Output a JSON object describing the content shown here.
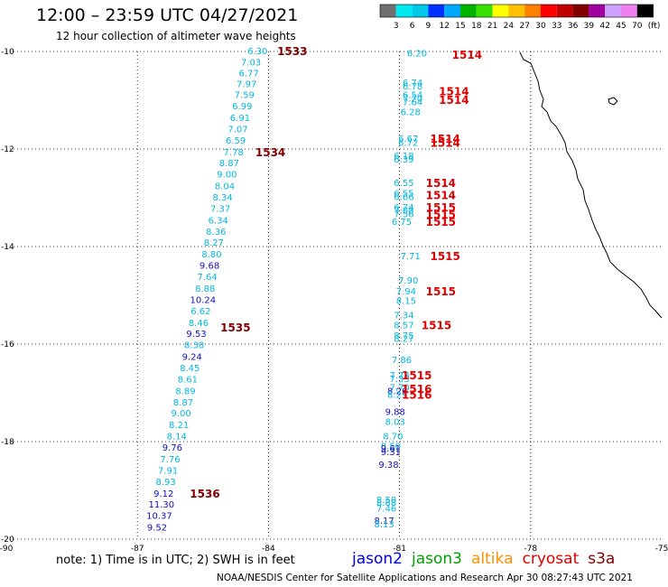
{
  "header": {
    "title": "12:00  –  23:59 UTC 04/27/2021",
    "subtitle": "12 hour collection of altimeter wave heights"
  },
  "color_scale": {
    "labels": [
      "3",
      "6",
      "9",
      "12",
      "15",
      "18",
      "21",
      "24",
      "27",
      "30",
      "33",
      "36",
      "39",
      "42",
      "45",
      "70"
    ],
    "unit_label": "(ft)",
    "colors": [
      "#707070",
      "#00e8f0",
      "#00c8e8",
      "#0030ff",
      "#00a8ff",
      "#00b400",
      "#38e000",
      "#ffff00",
      "#ffc000",
      "#ff8000",
      "#ff0000",
      "#c00000",
      "#800000",
      "#a000a0",
      "#d0a0ff",
      "#f080f0",
      "#000000"
    ]
  },
  "map_data": {
    "lon_range": [
      -90,
      -75
    ],
    "lat_range": [
      -20,
      -10
    ],
    "lon_ticks": [
      "-90",
      "-87",
      "-84",
      "-81",
      "-78",
      "-75"
    ],
    "lat_ticks": [
      "-10",
      "-12",
      "-14",
      "-16",
      "-18",
      "-20"
    ],
    "tracks": [
      {
        "name": "track-west",
        "points": [
          {
            "lon": -84.25,
            "lat": -10.0,
            "v": "6.30",
            "c": "#00b8e0"
          },
          {
            "lon": -84.4,
            "lat": -10.23,
            "v": "7.03",
            "c": "#00b8e0"
          },
          {
            "lon": -84.45,
            "lat": -10.45,
            "v": "6.77",
            "c": "#00b8e0"
          },
          {
            "lon": -84.5,
            "lat": -10.68,
            "v": "7.97",
            "c": "#00b8e0"
          },
          {
            "lon": -84.55,
            "lat": -10.9,
            "v": "7.59",
            "c": "#00b8e0"
          },
          {
            "lon": -84.6,
            "lat": -11.13,
            "v": "6.99",
            "c": "#00b8e0"
          },
          {
            "lon": -84.65,
            "lat": -11.37,
            "v": "6.91",
            "c": "#00b8e0"
          },
          {
            "lon": -84.7,
            "lat": -11.6,
            "v": "7.07",
            "c": "#00b8e0"
          },
          {
            "lon": -84.75,
            "lat": -11.83,
            "v": "6.59",
            "c": "#00b8e0"
          },
          {
            "lon": -84.8,
            "lat": -12.07,
            "v": "7.78",
            "c": "#00b8e0"
          },
          {
            "lon": -84.9,
            "lat": -12.3,
            "v": "8.87",
            "c": "#00b8e0"
          },
          {
            "lon": -84.95,
            "lat": -12.53,
            "v": "9.00",
            "c": "#00b8e0"
          },
          {
            "lon": -85.0,
            "lat": -12.77,
            "v": "8.04",
            "c": "#00b8e0"
          },
          {
            "lon": -85.05,
            "lat": -13.0,
            "v": "8.34",
            "c": "#00b8e0"
          },
          {
            "lon": -85.1,
            "lat": -13.23,
            "v": "7.37",
            "c": "#00b8e0"
          },
          {
            "lon": -85.15,
            "lat": -13.47,
            "v": "6.34",
            "c": "#00b8e0"
          },
          {
            "lon": -85.2,
            "lat": -13.7,
            "v": "8.36",
            "c": "#00b8e0"
          },
          {
            "lon": -85.25,
            "lat": -13.93,
            "v": "8.27",
            "c": "#00b8e0"
          },
          {
            "lon": -85.3,
            "lat": -14.17,
            "v": "8.80",
            "c": "#00b8e0"
          },
          {
            "lon": -85.35,
            "lat": -14.4,
            "v": "9.68",
            "c": "#1010c0"
          },
          {
            "lon": -85.4,
            "lat": -14.63,
            "v": "7.64",
            "c": "#00b8e0"
          },
          {
            "lon": -85.45,
            "lat": -14.87,
            "v": "8.88",
            "c": "#00b8e0"
          },
          {
            "lon": -85.5,
            "lat": -15.1,
            "v": "10.24",
            "c": "#1010c0"
          },
          {
            "lon": -85.55,
            "lat": -15.33,
            "v": "6.62",
            "c": "#00b8e0"
          },
          {
            "lon": -85.6,
            "lat": -15.57,
            "v": "8.46",
            "c": "#00b8e0"
          },
          {
            "lon": -85.65,
            "lat": -15.8,
            "v": "9.53",
            "c": "#1010c0"
          },
          {
            "lon": -85.7,
            "lat": -16.03,
            "v": "8.38",
            "c": "#00b8e0"
          },
          {
            "lon": -85.75,
            "lat": -16.27,
            "v": "9.24",
            "c": "#1010c0"
          },
          {
            "lon": -85.8,
            "lat": -16.5,
            "v": "8.45",
            "c": "#00b8e0"
          },
          {
            "lon": -85.85,
            "lat": -16.73,
            "v": "8.61",
            "c": "#00b8e0"
          },
          {
            "lon": -85.9,
            "lat": -16.97,
            "v": "8.89",
            "c": "#00b8e0"
          },
          {
            "lon": -85.95,
            "lat": -17.2,
            "v": "8.87",
            "c": "#00b8e0"
          },
          {
            "lon": -86.0,
            "lat": -17.43,
            "v": "9.00",
            "c": "#00b8e0"
          },
          {
            "lon": -86.05,
            "lat": -17.67,
            "v": "8.21",
            "c": "#00b8e0"
          },
          {
            "lon": -86.1,
            "lat": -17.9,
            "v": "8.14",
            "c": "#00b8e0"
          },
          {
            "lon": -86.2,
            "lat": -18.13,
            "v": "9.76",
            "c": "#1010c0"
          },
          {
            "lon": -86.25,
            "lat": -18.37,
            "v": "7.76",
            "c": "#00b8e0"
          },
          {
            "lon": -86.3,
            "lat": -18.6,
            "v": "7.91",
            "c": "#00b8e0"
          },
          {
            "lon": -86.35,
            "lat": -18.83,
            "v": "8.93",
            "c": "#00b8e0"
          },
          {
            "lon": -86.4,
            "lat": -19.07,
            "v": "9.12",
            "c": "#1010c0"
          },
          {
            "lon": -86.45,
            "lat": -19.3,
            "v": "11.30",
            "c": "#1010c0"
          },
          {
            "lon": -86.5,
            "lat": -19.53,
            "v": "10.37",
            "c": "#1010c0"
          },
          {
            "lon": -86.55,
            "lat": -19.77,
            "v": "9.52",
            "c": "#1010c0"
          }
        ]
      },
      {
        "name": "track-upper-east",
        "points": [
          {
            "lon": -80.6,
            "lat": -10.05,
            "v": "6.20",
            "c": "#00b8e0"
          },
          {
            "lon": -80.7,
            "lat": -10.65,
            "v": "6.74",
            "c": "#00b8e0"
          },
          {
            "lon": -80.7,
            "lat": -10.72,
            "v": "6.78",
            "c": "#00b8e0"
          },
          {
            "lon": -80.7,
            "lat": -10.9,
            "v": "6.54",
            "c": "#00b8e0"
          },
          {
            "lon": -80.7,
            "lat": -10.97,
            "v": "7.20",
            "c": "#00b8e0"
          },
          {
            "lon": -80.7,
            "lat": -11.05,
            "v": "7.64",
            "c": "#00b8e0"
          },
          {
            "lon": -80.75,
            "lat": -11.25,
            "v": "6.28",
            "c": "#00b8e0"
          },
          {
            "lon": -80.8,
            "lat": -11.8,
            "v": "6.67",
            "c": "#00b8e0"
          },
          {
            "lon": -80.8,
            "lat": -11.88,
            "v": "6.72",
            "c": "#00b8e0"
          },
          {
            "lon": -80.9,
            "lat": -12.15,
            "v": "6.18",
            "c": "#00b8e0"
          },
          {
            "lon": -80.9,
            "lat": -12.22,
            "v": "6.39",
            "c": "#00b8e0"
          },
          {
            "lon": -80.9,
            "lat": -12.7,
            "v": "6.55",
            "c": "#00b8e0"
          },
          {
            "lon": -80.9,
            "lat": -12.92,
            "v": "6.55",
            "c": "#00b8e0"
          },
          {
            "lon": -80.9,
            "lat": -12.99,
            "v": "6.66",
            "c": "#00b8e0"
          },
          {
            "lon": -80.9,
            "lat": -13.2,
            "v": "6.74",
            "c": "#00b8e0"
          },
          {
            "lon": -80.9,
            "lat": -13.27,
            "v": "7.08",
            "c": "#00b8e0"
          },
          {
            "lon": -80.9,
            "lat": -13.34,
            "v": "7.56",
            "c": "#00b8e0"
          },
          {
            "lon": -80.95,
            "lat": -13.5,
            "v": "6.75",
            "c": "#00b8e0"
          }
        ]
      },
      {
        "name": "track-lower-east",
        "points": [
          {
            "lon": -80.75,
            "lat": -14.2,
            "v": "7.71",
            "c": "#00b8e0"
          },
          {
            "lon": -80.8,
            "lat": -14.7,
            "v": "7.90",
            "c": "#00b8e0"
          },
          {
            "lon": -80.85,
            "lat": -14.93,
            "v": "7.94",
            "c": "#00b8e0"
          },
          {
            "lon": -80.85,
            "lat": -15.12,
            "v": "8.15",
            "c": "#00b8e0"
          },
          {
            "lon": -80.9,
            "lat": -15.42,
            "v": "7.34",
            "c": "#00b8e0"
          },
          {
            "lon": -80.9,
            "lat": -15.62,
            "v": "8.57",
            "c": "#00b8e0"
          },
          {
            "lon": -80.9,
            "lat": -15.83,
            "v": "8.75",
            "c": "#00b8e0"
          },
          {
            "lon": -80.9,
            "lat": -15.9,
            "v": "8.27",
            "c": "#00b8e0"
          },
          {
            "lon": -80.95,
            "lat": -16.33,
            "v": "7.86",
            "c": "#00b8e0"
          },
          {
            "lon": -81.0,
            "lat": -16.65,
            "v": "7.78",
            "c": "#00b8e0"
          },
          {
            "lon": -81.0,
            "lat": -16.72,
            "v": "7.33",
            "c": "#00b8e0"
          },
          {
            "lon": -81.0,
            "lat": -16.9,
            "v": "7.70",
            "c": "#00b8e0"
          },
          {
            "lon": -81.05,
            "lat": -16.97,
            "v": "8.26",
            "c": "#1010c0"
          },
          {
            "lon": -81.05,
            "lat": -17.05,
            "v": "8.29",
            "c": "#00b8e0"
          },
          {
            "lon": -81.1,
            "lat": -17.4,
            "v": "9.88",
            "c": "#1010c0"
          },
          {
            "lon": -81.1,
            "lat": -17.6,
            "v": "8.03",
            "c": "#00b8e0"
          },
          {
            "lon": -81.15,
            "lat": -17.9,
            "v": "8.70",
            "c": "#00b8e0"
          },
          {
            "lon": -81.2,
            "lat": -18.1,
            "v": "8.50",
            "c": "#00b8e0"
          },
          {
            "lon": -81.2,
            "lat": -18.15,
            "v": "9.61",
            "c": "#1010c0"
          },
          {
            "lon": -81.2,
            "lat": -18.22,
            "v": "9.31",
            "c": "#1010c0"
          },
          {
            "lon": -81.25,
            "lat": -18.48,
            "v": "9.38",
            "c": "#1010c0"
          },
          {
            "lon": -81.3,
            "lat": -19.2,
            "v": "8.50",
            "c": "#00b8e0"
          },
          {
            "lon": -81.3,
            "lat": -19.26,
            "v": "8.88",
            "c": "#00b8e0"
          },
          {
            "lon": -81.3,
            "lat": -19.38,
            "v": "7.46",
            "c": "#00b8e0"
          },
          {
            "lon": -81.35,
            "lat": -19.63,
            "v": "8.17",
            "c": "#1010c0"
          },
          {
            "lon": -81.35,
            "lat": -19.7,
            "v": "8.13",
            "c": "#00b8e0"
          }
        ]
      }
    ],
    "time_labels": [
      {
        "lon": -83.8,
        "lat": -10.0,
        "t": "1533",
        "c": "#800000"
      },
      {
        "lon": -79.8,
        "lat": -10.07,
        "t": "1514",
        "c": "#e00000"
      },
      {
        "lon": -80.1,
        "lat": -10.82,
        "t": "1514",
        "c": "#e00000"
      },
      {
        "lon": -80.1,
        "lat": -11.0,
        "t": "1514",
        "c": "#e00000"
      },
      {
        "lon": -80.3,
        "lat": -11.8,
        "t": "1514",
        "c": "#e00000"
      },
      {
        "lon": -80.3,
        "lat": -11.88,
        "t": "1514",
        "c": "#e00000"
      },
      {
        "lon": -84.3,
        "lat": -12.07,
        "t": "1534",
        "c": "#800000"
      },
      {
        "lon": -80.4,
        "lat": -12.7,
        "t": "1514",
        "c": "#e00000"
      },
      {
        "lon": -80.4,
        "lat": -12.95,
        "t": "1514",
        "c": "#e00000"
      },
      {
        "lon": -80.4,
        "lat": -13.2,
        "t": "1515",
        "c": "#e00000"
      },
      {
        "lon": -80.4,
        "lat": -13.35,
        "t": "1515",
        "c": "#e00000"
      },
      {
        "lon": -80.4,
        "lat": -13.5,
        "t": "1515",
        "c": "#e00000"
      },
      {
        "lon": -80.3,
        "lat": -14.2,
        "t": "1515",
        "c": "#e00000"
      },
      {
        "lon": -80.4,
        "lat": -14.93,
        "t": "1515",
        "c": "#e00000"
      },
      {
        "lon": -80.5,
        "lat": -15.62,
        "t": "1515",
        "c": "#e00000"
      },
      {
        "lon": -85.1,
        "lat": -15.67,
        "t": "1535",
        "c": "#800000"
      },
      {
        "lon": -80.95,
        "lat": -16.65,
        "t": "1515",
        "c": "#e00000"
      },
      {
        "lon": -80.95,
        "lat": -16.93,
        "t": "1516",
        "c": "#e00000"
      },
      {
        "lon": -80.95,
        "lat": -17.05,
        "t": "1516",
        "c": "#e00000"
      },
      {
        "lon": -85.8,
        "lat": -19.07,
        "t": "1536",
        "c": "#800000"
      }
    ]
  },
  "footer": {
    "note": "note: 1) Time is in UTC; 2) SWH is in feet",
    "credit": "NOAA/NESDIS Center for Satellite Applications and Research    Apr 30 08:27:43 UTC 2021"
  },
  "legend": [
    {
      "name": "jason2",
      "color": "#0000e0"
    },
    {
      "name": "jason3",
      "color": "#00a000"
    },
    {
      "name": "altika",
      "color": "#ff9000"
    },
    {
      "name": "cryosat",
      "color": "#e00000"
    },
    {
      "name": "s3a",
      "color": "#800000"
    }
  ]
}
